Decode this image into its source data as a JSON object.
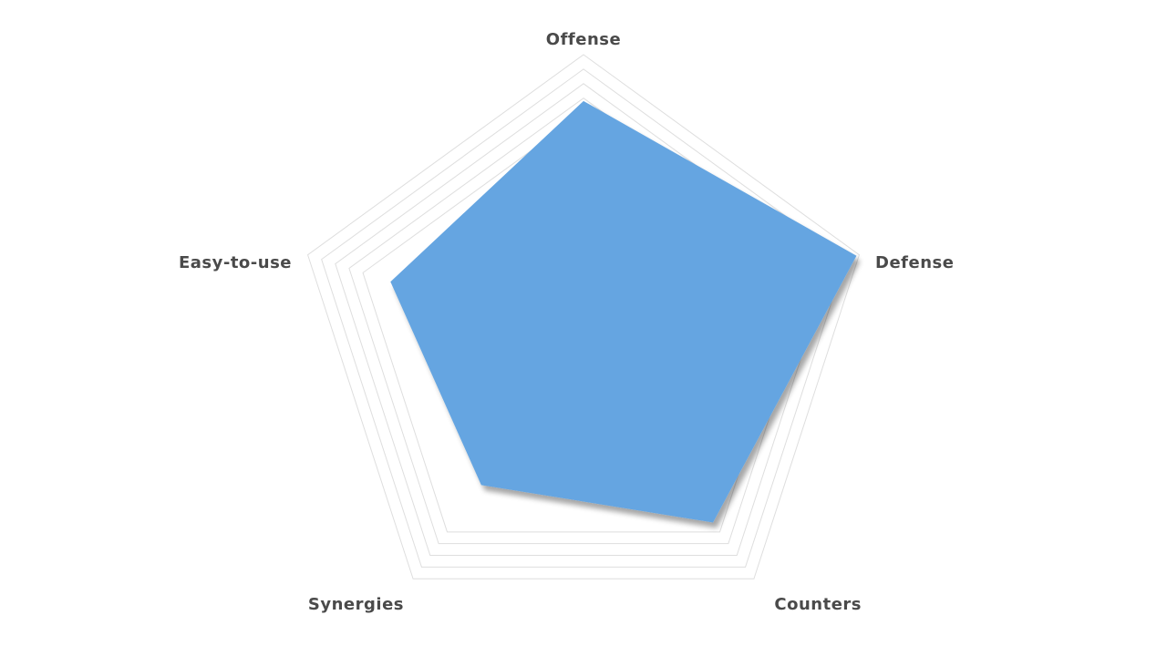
{
  "chart_data": {
    "type": "radar",
    "axes": [
      "Offense",
      "Defense",
      "Counters",
      "Synergies",
      "Easy-to-use"
    ],
    "series": [
      {
        "values": [
          84,
          99,
          76,
          60,
          70
        ]
      }
    ],
    "rlim": [
      0,
      100
    ],
    "grid_levels": 5,
    "grid": true,
    "fill_color": "#65a5e1",
    "grid_color": "#dedede",
    "label_color": "#4a4a4a"
  }
}
